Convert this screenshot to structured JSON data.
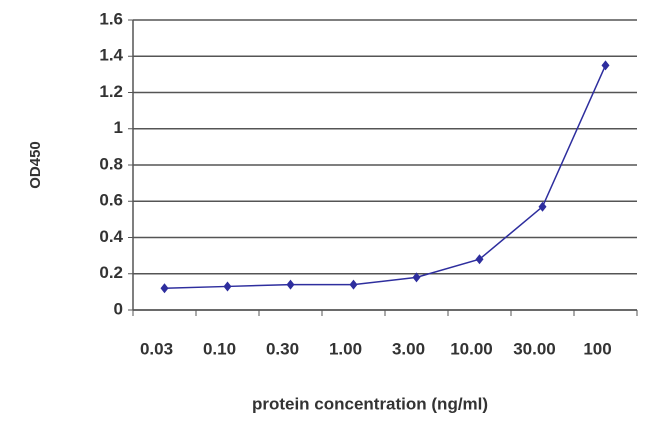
{
  "chart_data": {
    "type": "line",
    "y_label": "OD450",
    "x_label": "protein concentration  (ng/ml)",
    "categories": [
      "0.03",
      "0.10",
      "0.30",
      "1.00",
      "3.00",
      "10.00",
      "30.00",
      "100"
    ],
    "values": [
      0.12,
      0.13,
      0.14,
      0.14,
      0.18,
      0.28,
      0.57,
      1.35
    ],
    "color": "#2e2e9e",
    "ylim": [
      0,
      1.6
    ],
    "yticks": [
      0,
      0.2,
      0.4,
      0.6,
      0.8,
      1,
      1.2,
      1.4,
      1.6
    ],
    "grid": true
  }
}
